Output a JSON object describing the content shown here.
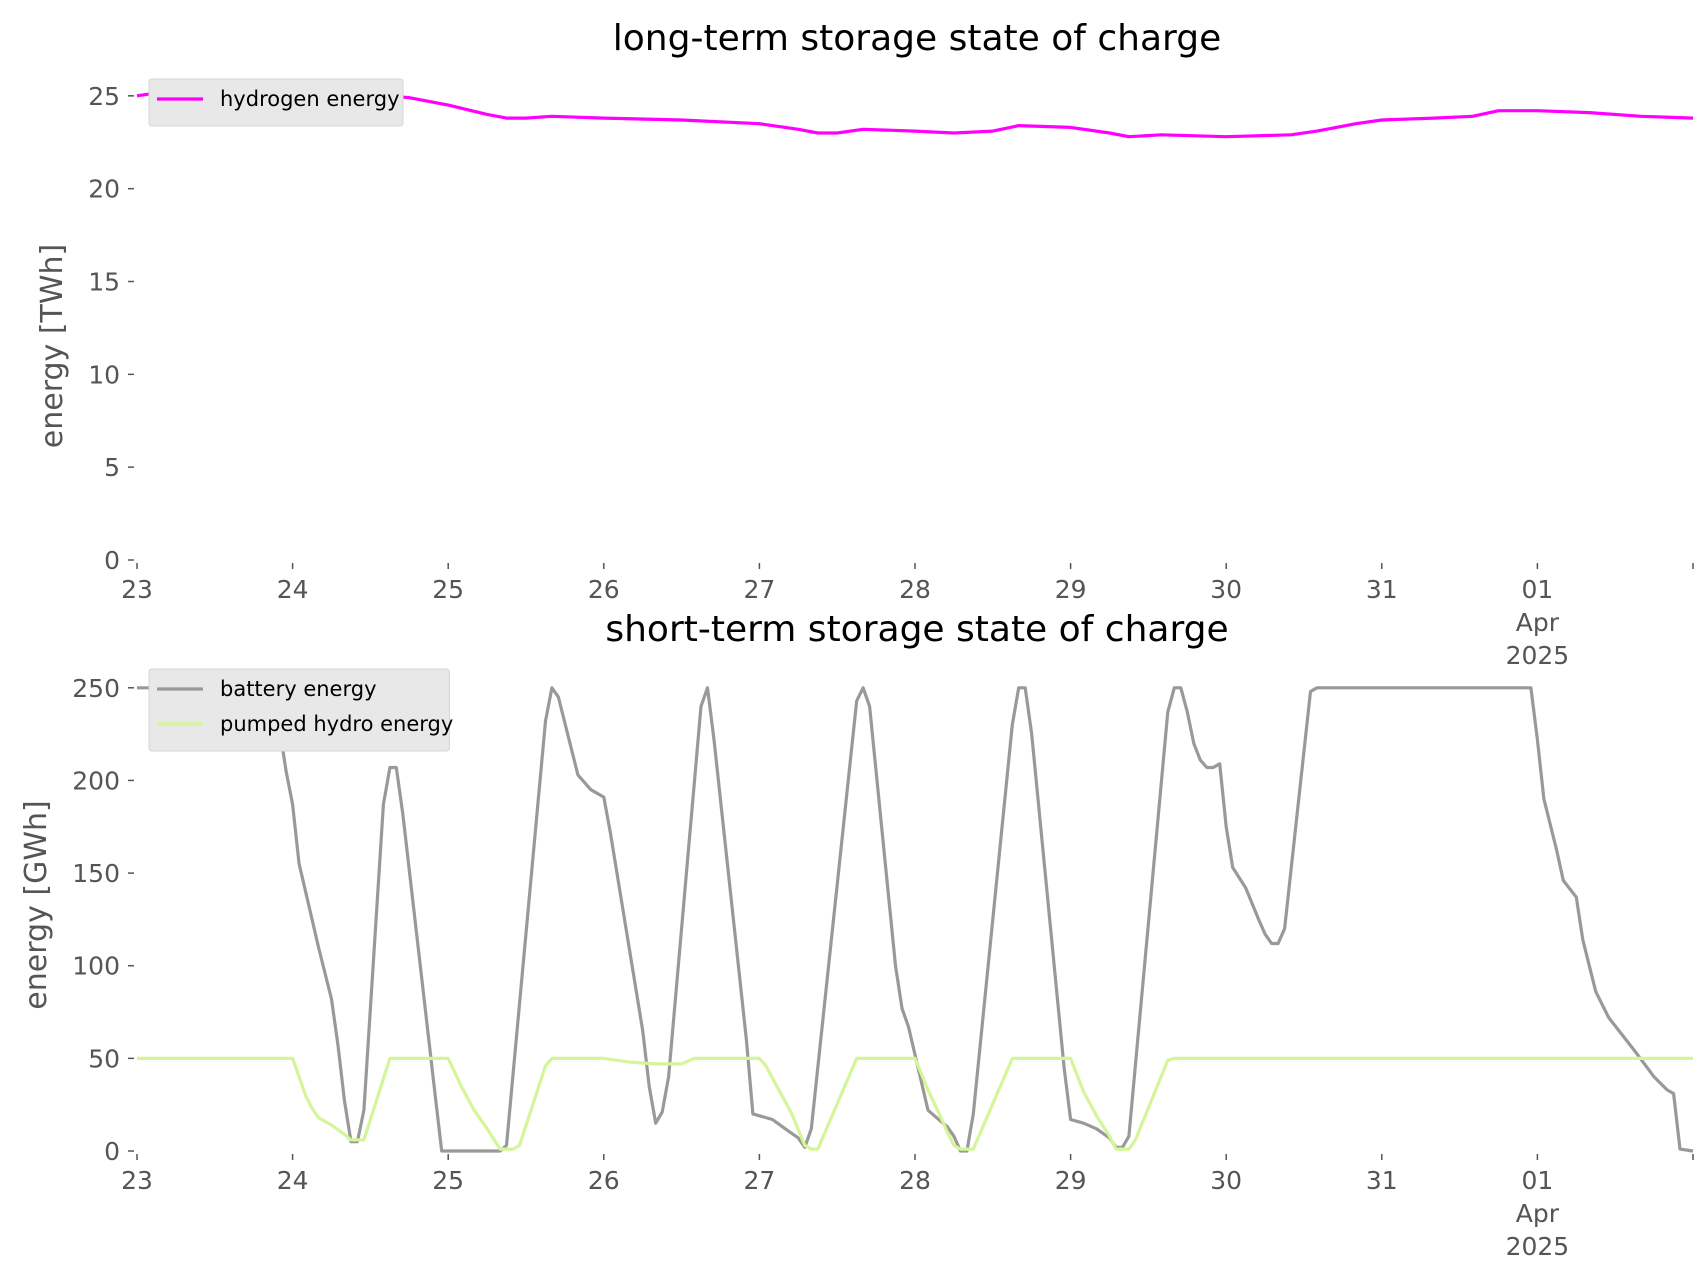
{
  "chart_data": [
    {
      "type": "line",
      "title": "long-term storage state of charge",
      "ylabel": "energy [TWh]",
      "xlabel": "",
      "x_range": [
        "2025-03-23T00:00",
        "2025-04-02T00:00"
      ],
      "ylim": [
        0,
        26.5
      ],
      "yticks": [
        "0",
        "5",
        "10",
        "15",
        "20",
        "25"
      ],
      "xtick_labels": [
        "23",
        "24",
        "25",
        "26",
        "27",
        "28",
        "29",
        "30",
        "31",
        "01\nApr\n2025",
        ""
      ],
      "grid": false,
      "legend_position": "upper-left",
      "series": [
        {
          "name": "hydrogen energy",
          "color": "#ff00ff",
          "points": [
            [
              "2025-03-23T00:00",
              25.0
            ],
            [
              "2025-03-23T06:00",
              25.3
            ],
            [
              "2025-03-23T12:00",
              25.5
            ],
            [
              "2025-03-23T18:00",
              25.6
            ],
            [
              "2025-03-24T00:00",
              25.5
            ],
            [
              "2025-03-24T06:00",
              25.3
            ],
            [
              "2025-03-24T12:00",
              25.1
            ],
            [
              "2025-03-24T18:00",
              24.9
            ],
            [
              "2025-03-25T00:00",
              24.5
            ],
            [
              "2025-03-25T06:00",
              24.0
            ],
            [
              "2025-03-25T09:00",
              23.8
            ],
            [
              "2025-03-25T12:00",
              23.8
            ],
            [
              "2025-03-25T16:00",
              23.9
            ],
            [
              "2025-03-26T00:00",
              23.8
            ],
            [
              "2025-03-26T12:00",
              23.7
            ],
            [
              "2025-03-27T00:00",
              23.5
            ],
            [
              "2025-03-27T06:00",
              23.2
            ],
            [
              "2025-03-27T09:00",
              23.0
            ],
            [
              "2025-03-27T12:00",
              23.0
            ],
            [
              "2025-03-27T16:00",
              23.2
            ],
            [
              "2025-03-28T00:00",
              23.1
            ],
            [
              "2025-03-28T06:00",
              23.0
            ],
            [
              "2025-03-28T12:00",
              23.1
            ],
            [
              "2025-03-28T16:00",
              23.4
            ],
            [
              "2025-03-29T00:00",
              23.3
            ],
            [
              "2025-03-29T06:00",
              23.0
            ],
            [
              "2025-03-29T09:00",
              22.8
            ],
            [
              "2025-03-29T14:00",
              22.9
            ],
            [
              "2025-03-30T00:00",
              22.8
            ],
            [
              "2025-03-30T10:00",
              22.9
            ],
            [
              "2025-03-30T14:00",
              23.1
            ],
            [
              "2025-03-30T20:00",
              23.5
            ],
            [
              "2025-03-31T00:00",
              23.7
            ],
            [
              "2025-03-31T08:00",
              23.8
            ],
            [
              "2025-03-31T14:00",
              23.9
            ],
            [
              "2025-03-31T18:00",
              24.2
            ],
            [
              "2025-04-01T00:00",
              24.2
            ],
            [
              "2025-04-01T08:00",
              24.1
            ],
            [
              "2025-04-01T16:00",
              23.9
            ],
            [
              "2025-04-02T00:00",
              23.8
            ]
          ]
        }
      ]
    },
    {
      "type": "line",
      "title": "short-term storage state of charge",
      "ylabel": "energy [GWh]",
      "xlabel": "",
      "x_range": [
        "2025-03-23T00:00",
        "2025-04-02T00:00"
      ],
      "ylim": [
        0,
        265
      ],
      "yticks": [
        "0",
        "50",
        "100",
        "150",
        "200",
        "250"
      ],
      "xtick_labels": [
        "23",
        "24",
        "25",
        "26",
        "27",
        "28",
        "29",
        "30",
        "31",
        "01\nApr\n2025",
        ""
      ],
      "grid": false,
      "legend_position": "upper-left",
      "series": [
        {
          "name": "battery energy",
          "color": "#999999",
          "points": [
            [
              "2025-03-23T00:00",
              250
            ],
            [
              "2025-03-23T20:00",
              250
            ],
            [
              "2025-03-23T22:00",
              228
            ],
            [
              "2025-03-23T23:00",
              205
            ],
            [
              "2025-03-24T00:00",
              187
            ],
            [
              "2025-03-24T01:00",
              155
            ],
            [
              "2025-03-24T02:00",
              140
            ],
            [
              "2025-03-24T04:00",
              110
            ],
            [
              "2025-03-24T06:00",
              82
            ],
            [
              "2025-03-24T07:00",
              57
            ],
            [
              "2025-03-24T08:00",
              27
            ],
            [
              "2025-03-24T09:00",
              5
            ],
            [
              "2025-03-24T10:00",
              5
            ],
            [
              "2025-03-24T11:00",
              22
            ],
            [
              "2025-03-24T14:00",
              187
            ],
            [
              "2025-03-24T15:00",
              207
            ],
            [
              "2025-03-24T16:00",
              207
            ],
            [
              "2025-03-24T17:00",
              182
            ],
            [
              "2025-03-24T22:00",
              30
            ],
            [
              "2025-03-24T23:00",
              0
            ],
            [
              "2025-03-25T08:00",
              0
            ],
            [
              "2025-03-25T09:00",
              3
            ],
            [
              "2025-03-25T15:00",
              232
            ],
            [
              "2025-03-25T16:00",
              250
            ],
            [
              "2025-03-25T17:00",
              245
            ],
            [
              "2025-03-25T20:00",
              203
            ],
            [
              "2025-03-25T22:00",
              195
            ],
            [
              "2025-03-26T00:00",
              191
            ],
            [
              "2025-03-26T01:00",
              172
            ],
            [
              "2025-03-26T06:00",
              65
            ],
            [
              "2025-03-26T07:00",
              35
            ],
            [
              "2025-03-26T08:00",
              15
            ],
            [
              "2025-03-26T09:00",
              21
            ],
            [
              "2025-03-26T10:00",
              40
            ],
            [
              "2025-03-26T15:00",
              240
            ],
            [
              "2025-03-26T16:00",
              250
            ],
            [
              "2025-03-26T17:00",
              222
            ],
            [
              "2025-03-26T22:00",
              60
            ],
            [
              "2025-03-26T23:00",
              20
            ],
            [
              "2025-03-27T02:00",
              17
            ],
            [
              "2025-03-27T04:00",
              12
            ],
            [
              "2025-03-27T06:00",
              7
            ],
            [
              "2025-03-27T07:00",
              2
            ],
            [
              "2025-03-27T08:00",
              12
            ],
            [
              "2025-03-27T15:00",
              243
            ],
            [
              "2025-03-27T16:00",
              250
            ],
            [
              "2025-03-27T17:00",
              240
            ],
            [
              "2025-03-27T21:00",
              100
            ],
            [
              "2025-03-27T22:00",
              77
            ],
            [
              "2025-03-27T23:00",
              67
            ],
            [
              "2025-03-28T02:00",
              22
            ],
            [
              "2025-03-28T04:00",
              16
            ],
            [
              "2025-03-28T05:00",
              13
            ],
            [
              "2025-03-28T06:00",
              8
            ],
            [
              "2025-03-28T07:00",
              0
            ],
            [
              "2025-03-28T08:00",
              0
            ],
            [
              "2025-03-28T09:00",
              20
            ],
            [
              "2025-03-28T15:00",
              230
            ],
            [
              "2025-03-28T16:00",
              250
            ],
            [
              "2025-03-28T17:00",
              250
            ],
            [
              "2025-03-28T18:00",
              225
            ],
            [
              "2025-03-28T23:00",
              45
            ],
            [
              "2025-03-29T00:00",
              17
            ],
            [
              "2025-03-29T02:00",
              15
            ],
            [
              "2025-03-29T04:00",
              12
            ],
            [
              "2025-03-29T06:00",
              7
            ],
            [
              "2025-03-29T07:00",
              2
            ],
            [
              "2025-03-29T08:00",
              2
            ],
            [
              "2025-03-29T09:00",
              8
            ],
            [
              "2025-03-29T15:00",
              237
            ],
            [
              "2025-03-29T16:00",
              250
            ],
            [
              "2025-03-29T17:00",
              250
            ],
            [
              "2025-03-29T18:00",
              237
            ],
            [
              "2025-03-29T19:00",
              220
            ],
            [
              "2025-03-29T20:00",
              211
            ],
            [
              "2025-03-29T21:00",
              207
            ],
            [
              "2025-03-29T22:00",
              207
            ],
            [
              "2025-03-29T23:00",
              209
            ],
            [
              "2025-03-30T00:00",
              175
            ],
            [
              "2025-03-30T01:00",
              153
            ],
            [
              "2025-03-30T03:00",
              142
            ],
            [
              "2025-03-30T05:00",
              125
            ],
            [
              "2025-03-30T06:00",
              117
            ],
            [
              "2025-03-30T07:00",
              112
            ],
            [
              "2025-03-30T08:00",
              112
            ],
            [
              "2025-03-30T09:00",
              120
            ],
            [
              "2025-03-30T13:00",
              248
            ],
            [
              "2025-03-30T14:00",
              250
            ],
            [
              "2025-03-31T23:00",
              250
            ],
            [
              "2025-04-01T00:00",
              222
            ],
            [
              "2025-04-01T01:00",
              190
            ],
            [
              "2025-04-01T03:00",
              162
            ],
            [
              "2025-04-01T04:00",
              146
            ],
            [
              "2025-04-01T06:00",
              137
            ],
            [
              "2025-04-01T07:00",
              114
            ],
            [
              "2025-04-01T09:00",
              86
            ],
            [
              "2025-04-01T11:00",
              72
            ],
            [
              "2025-04-01T15:00",
              54
            ],
            [
              "2025-04-01T18:00",
              40
            ],
            [
              "2025-04-01T20:00",
              33
            ],
            [
              "2025-04-01T21:00",
              31
            ],
            [
              "2025-04-01T22:00",
              1
            ],
            [
              "2025-04-02T00:00",
              0
            ]
          ]
        },
        {
          "name": "pumped hydro energy",
          "color": "#d4f598",
          "points": [
            [
              "2025-03-23T00:00",
              50
            ],
            [
              "2025-03-24T00:00",
              50
            ],
            [
              "2025-03-24T01:00",
              40
            ],
            [
              "2025-03-24T02:00",
              30
            ],
            [
              "2025-03-24T03:00",
              23
            ],
            [
              "2025-03-24T04:00",
              18
            ],
            [
              "2025-03-24T06:00",
              14
            ],
            [
              "2025-03-24T08:00",
              9
            ],
            [
              "2025-03-24T09:00",
              6
            ],
            [
              "2025-03-24T11:00",
              6
            ],
            [
              "2025-03-24T15:00",
              50
            ],
            [
              "2025-03-25T00:00",
              50
            ],
            [
              "2025-03-25T02:00",
              35
            ],
            [
              "2025-03-25T04:00",
              22
            ],
            [
              "2025-03-25T06:00",
              12
            ],
            [
              "2025-03-25T08:00",
              1
            ],
            [
              "2025-03-25T10:00",
              1
            ],
            [
              "2025-03-25T11:00",
              3
            ],
            [
              "2025-03-25T15:00",
              46
            ],
            [
              "2025-03-25T16:00",
              50
            ],
            [
              "2025-03-26T00:00",
              50
            ],
            [
              "2025-03-26T04:00",
              48
            ],
            [
              "2025-03-26T08:00",
              47
            ],
            [
              "2025-03-26T12:00",
              47
            ],
            [
              "2025-03-26T14:00",
              50
            ],
            [
              "2025-03-27T00:00",
              50
            ],
            [
              "2025-03-27T01:00",
              46
            ],
            [
              "2025-03-27T03:00",
              33
            ],
            [
              "2025-03-27T05:00",
              20
            ],
            [
              "2025-03-27T07:00",
              3
            ],
            [
              "2025-03-27T08:00",
              1
            ],
            [
              "2025-03-27T09:00",
              1
            ],
            [
              "2025-03-27T15:00",
              50
            ],
            [
              "2025-03-28T00:00",
              50
            ],
            [
              "2025-03-28T02:00",
              33
            ],
            [
              "2025-03-28T04:00",
              18
            ],
            [
              "2025-03-28T05:00",
              10
            ],
            [
              "2025-03-28T06:00",
              3
            ],
            [
              "2025-03-28T07:00",
              1
            ],
            [
              "2025-03-28T09:00",
              1
            ],
            [
              "2025-03-28T15:00",
              50
            ],
            [
              "2025-03-29T00:00",
              50
            ],
            [
              "2025-03-29T02:00",
              32
            ],
            [
              "2025-03-29T04:00",
              19
            ],
            [
              "2025-03-29T06:00",
              8
            ],
            [
              "2025-03-29T07:00",
              1
            ],
            [
              "2025-03-29T09:00",
              1
            ],
            [
              "2025-03-29T10:00",
              6
            ],
            [
              "2025-03-29T15:00",
              49
            ],
            [
              "2025-03-29T16:00",
              50
            ],
            [
              "2025-04-02T00:00",
              50
            ]
          ]
        }
      ]
    }
  ]
}
